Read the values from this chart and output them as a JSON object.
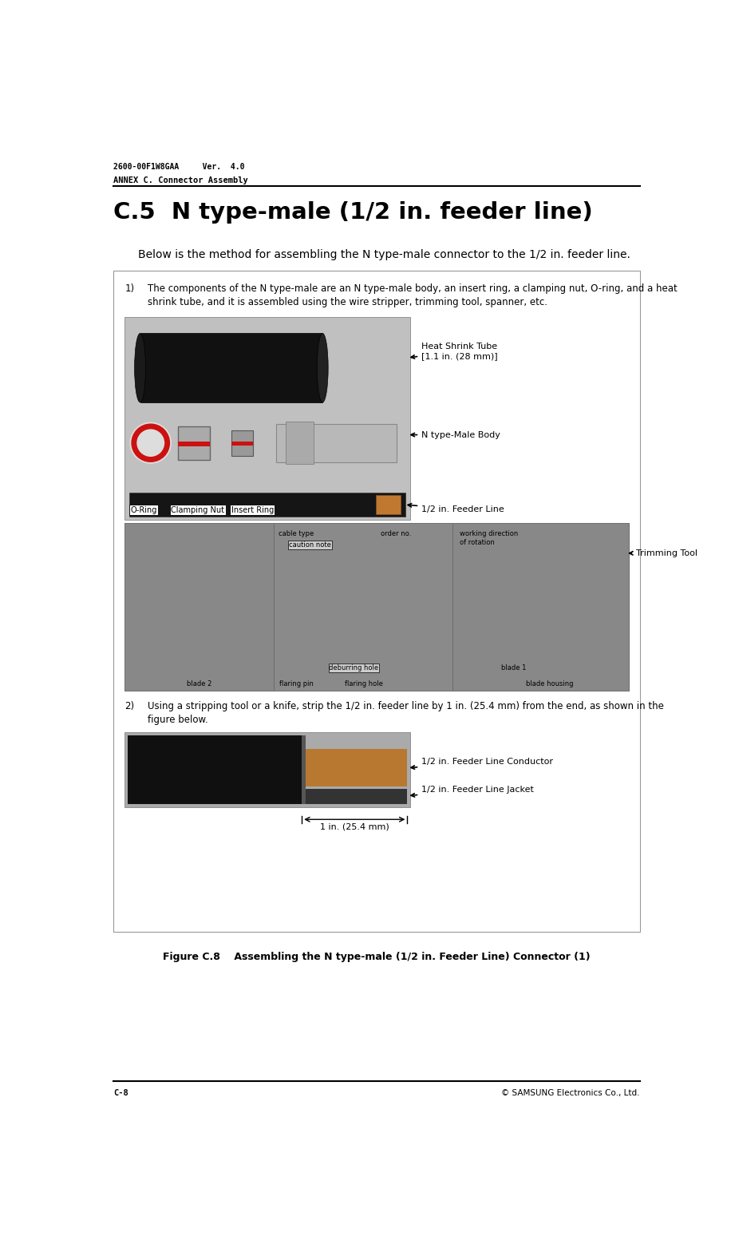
{
  "page_width": 9.21,
  "page_height": 15.58,
  "bg_color": "#ffffff",
  "header_text1": "2600-00F1W8GAA     Ver.  4.0",
  "header_text2": "ANNEX C. Connector Assembly",
  "footer_left": "C-8",
  "footer_right": "© SAMSUNG Electronics Co., Ltd.",
  "section_title": "C.5  N type-male (1/2 in. feeder line)",
  "intro_text": "Below is the method for assembling the N type-male connector to the 1/2 in. feeder line.",
  "item1_text_line1": "The components of the N type-male are an N type-male body, an insert ring, a clamping nut, O-ring, and a heat",
  "item1_text_line2": "shrink tube, and it is assembled using the wire stripper, trimming tool, spanner, etc.",
  "item2_text_line1": "Using a stripping tool or a knife, strip the 1/2 in. feeder line by 1 in. (25.4 mm) from the end, as shown in the",
  "item2_text_line2": "figure below.",
  "heat_shrink_label": "Heat Shrink Tube\n[1.1 in. (28 mm)]",
  "n_body_label": "N type-Male Body",
  "feeder_label": "1/2 in. Feeder Line",
  "o_ring_label": "O-Ring",
  "clamping_label": "Clamping Nut",
  "insert_label": "Insert Ring",
  "trimming_label": "Trimming Tool",
  "conductor_label": "1/2 in. Feeder Line Conductor",
  "jacket_label": "1/2 in. Feeder Line Jacket",
  "dim_label": "1 in. (25.4 mm)",
  "fig_caption": "Figure C.8    Assembling the N type-male (1/2 in. Feeder Line) Connector (1)",
  "photo1_bg": "#c8c8c8",
  "photo1_item_bg": "#1e1e1e",
  "photo2_bg": "#888888",
  "photo3_bg": "#1a1a1a",
  "label_box_bg": "#ffffff",
  "label_box_edge": "#000000"
}
